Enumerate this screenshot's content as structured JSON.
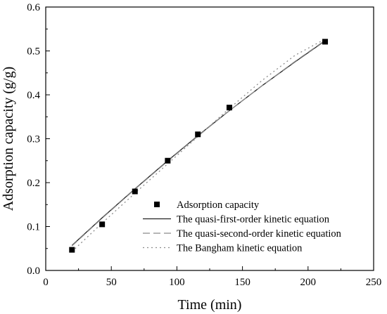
{
  "chart_data": {
    "type": "scatter",
    "title": "",
    "xlabel": "Time (min)",
    "ylabel": "Adsorption capacity (g/g)",
    "xlim": [
      0,
      250
    ],
    "ylim": [
      0,
      0.6
    ],
    "xticks": [
      0,
      50,
      100,
      150,
      200,
      250
    ],
    "yticks": [
      0.0,
      0.1,
      0.2,
      0.3,
      0.4,
      0.5,
      0.6
    ],
    "xtick_labels": [
      "0",
      "50",
      "100",
      "150",
      "200",
      "250"
    ],
    "ytick_labels": [
      "0.0",
      "0.1",
      "0.2",
      "0.3",
      "0.4",
      "0.5",
      "0.6"
    ],
    "grid": false,
    "legend_position": "bottom-right",
    "series": [
      {
        "name": "Adsorption capacity",
        "kind": "scatter",
        "marker": "square",
        "color": "#000000",
        "x": [
          20,
          43,
          68,
          93,
          116,
          140,
          213
        ],
        "y": [
          0.047,
          0.105,
          0.18,
          0.25,
          0.31,
          0.371,
          0.521
        ]
      },
      {
        "name": "The quasi-first-order kinetic equation",
        "kind": "line",
        "style": "solid",
        "color": "#222222",
        "x": [
          20,
          43,
          68,
          93,
          116,
          140,
          165,
          190,
          213
        ],
        "y": [
          0.057,
          0.12,
          0.186,
          0.25,
          0.307,
          0.364,
          0.421,
          0.475,
          0.523
        ]
      },
      {
        "name": "The quasi-second-order kinetic equation",
        "kind": "line",
        "style": "dashed",
        "color": "#8a8a8a",
        "x": [
          20,
          43,
          68,
          93,
          116,
          140,
          165,
          190,
          213
        ],
        "y": [
          0.056,
          0.119,
          0.185,
          0.249,
          0.306,
          0.364,
          0.421,
          0.476,
          0.524
        ]
      },
      {
        "name": "The Bangham kinetic equation",
        "kind": "line",
        "style": "dotted",
        "color": "#8c8c8c",
        "x": [
          20,
          43,
          68,
          93,
          116,
          140,
          165,
          190,
          213
        ],
        "y": [
          0.043,
          0.108,
          0.176,
          0.243,
          0.305,
          0.369,
          0.433,
          0.49,
          0.527
        ]
      }
    ]
  }
}
